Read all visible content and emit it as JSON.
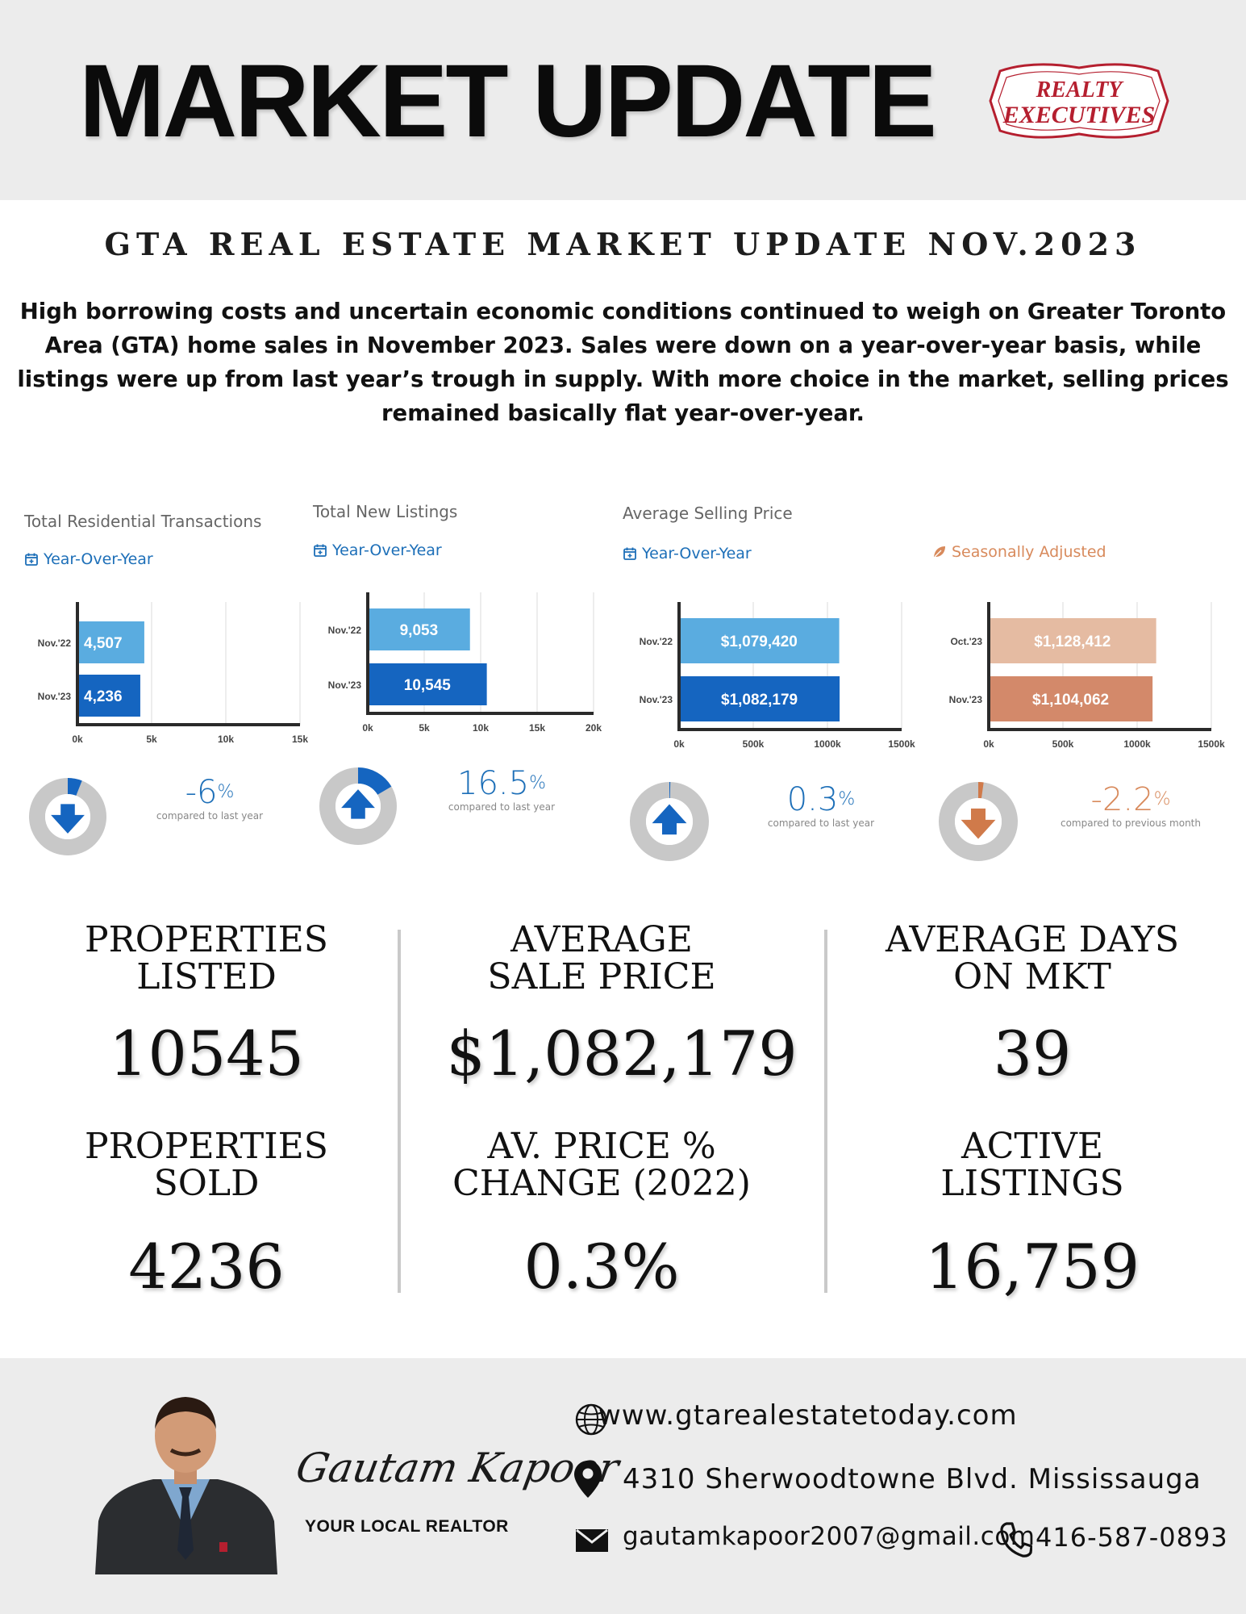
{
  "header": {
    "title": "MARKET UPDATE",
    "logo_line1": "REALTY",
    "logo_line2": "EXECUTIVES"
  },
  "subtitle": "GTA  REAL ESTATE MARKET UPDATE NOV.2023",
  "intro": "High borrowing costs and uncertain economic conditions continued to weigh on Greater Toronto Area (GTA) home sales in November 2023. Sales were down on a year-over-year basis, while listings were up from last year’s trough in supply. With more choice in the market, selling prices remained basically flat year-over-year.",
  "chart_data": [
    {
      "type": "bar",
      "orientation": "horizontal",
      "title": "Total Residential Transactions",
      "tag": "Year-Over-Year",
      "categories": [
        "Nov.'22",
        "Nov.'23"
      ],
      "values": [
        4507,
        4236
      ],
      "labels": [
        "4,507",
        "4,236"
      ],
      "xlim": [
        0,
        15000
      ],
      "ticks": [
        0,
        5000,
        10000,
        15000
      ],
      "tick_labels": [
        "0k",
        "5k",
        "10k",
        "15k"
      ],
      "colors": [
        "#5aace0",
        "#1565c0"
      ],
      "grid": true
    },
    {
      "type": "bar",
      "orientation": "horizontal",
      "title": "Total New Listings",
      "tag": "Year-Over-Year",
      "categories": [
        "Nov.'22",
        "Nov.'23"
      ],
      "values": [
        9053,
        10545
      ],
      "labels": [
        "9,053",
        "10,545"
      ],
      "xlim": [
        0,
        20000
      ],
      "ticks": [
        0,
        5000,
        10000,
        15000,
        20000
      ],
      "tick_labels": [
        "0k",
        "5k",
        "10k",
        "15k",
        "20k"
      ],
      "colors": [
        "#5aace0",
        "#1565c0"
      ],
      "grid": true
    },
    {
      "type": "bar",
      "orientation": "horizontal",
      "title": "Average Selling Price",
      "tag": "Year-Over-Year",
      "categories": [
        "Nov.'22",
        "Nov.'23"
      ],
      "values": [
        1079420,
        1082179
      ],
      "labels": [
        "$1,079,420",
        "$1,082,179"
      ],
      "xlim": [
        0,
        1500000
      ],
      "ticks": [
        0,
        500000,
        1000000,
        1500000
      ],
      "tick_labels": [
        "0k",
        "500k",
        "1000k",
        "1500k"
      ],
      "colors": [
        "#5aace0",
        "#1565c0"
      ],
      "grid": true
    },
    {
      "type": "bar",
      "orientation": "horizontal",
      "title": "",
      "tag": "Seasonally Adjusted",
      "categories": [
        "Oct.'23",
        "Nov.'23"
      ],
      "values": [
        1128412,
        1104062
      ],
      "labels": [
        "$1,128,412",
        "$1,104,062"
      ],
      "xlim": [
        0,
        1500000
      ],
      "ticks": [
        0,
        500000,
        1000000,
        1500000
      ],
      "tick_labels": [
        "0k",
        "500k",
        "1000k",
        "1500k"
      ],
      "colors": [
        "#e5bba2",
        "#d3896a"
      ],
      "grid": true
    }
  ],
  "changes": [
    {
      "value": "-6",
      "symbol": "%",
      "caption": "compared to last year",
      "direction": "down",
      "fraction": 0.06,
      "color": "#1565c0"
    },
    {
      "value": "16.5",
      "symbol": "%",
      "caption": "compared to last year",
      "direction": "up",
      "fraction": 0.165,
      "color": "#1565c0"
    },
    {
      "value": "0.3",
      "symbol": "%",
      "caption": "compared to last year",
      "direction": "up",
      "fraction": 0.003,
      "color": "#1565c0"
    },
    {
      "value": "-2.2",
      "symbol": "%",
      "caption": "compared to previous month",
      "direction": "down",
      "fraction": 0.022,
      "color": "#d07a4a"
    }
  ],
  "stats": {
    "properties_listed": {
      "label1": "PROPERTIES",
      "label2": "LISTED",
      "value": "10545"
    },
    "average_sale_price": {
      "label1": "AVERAGE",
      "label2": "SALE PRICE",
      "value": "$1,082,179"
    },
    "average_days": {
      "label1": "AVERAGE DAYS",
      "label2": "ON MKT",
      "value": "39"
    },
    "properties_sold": {
      "label1": "PROPERTIES",
      "label2": "SOLD",
      "value": "4236"
    },
    "price_change": {
      "label1": "AV. PRICE %",
      "label2": "CHANGE (2022)",
      "value": "0.3%"
    },
    "active_listings": {
      "label1": "ACTIVE",
      "label2": "LISTINGS",
      "value": "16,759"
    }
  },
  "footer": {
    "signature": "Gautam Kapoor",
    "tagline": "YOUR LOCAL REALTOR",
    "website": "www.gtarealestatetoday.com",
    "address": "4310 Sherwoodtowne Blvd. Mississauga",
    "email": "gautamkapoor2007@gmail.com",
    "phone": "416-587-0893",
    "icons": [
      "globe-icon",
      "location-pin-icon",
      "mail-icon",
      "phone-icon"
    ]
  }
}
